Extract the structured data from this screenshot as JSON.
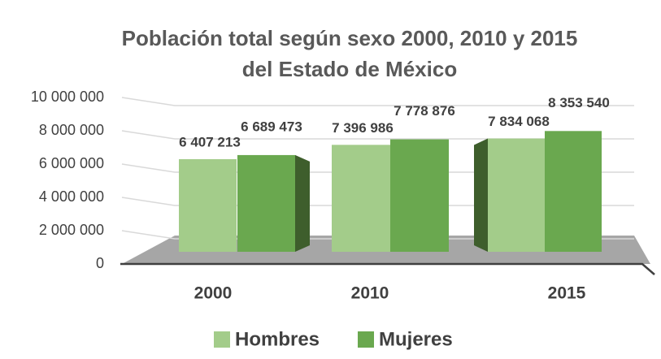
{
  "chart_data": {
    "type": "bar3d",
    "title": "Población total según sexo 2000, 2010 y 2015 del Estado de México",
    "categories": [
      "2000",
      "2010",
      "2015"
    ],
    "series": [
      {
        "name": "Hombres",
        "color": "#a3cc8a",
        "values": [
          6407213,
          7396986,
          7834068
        ],
        "value_labels": [
          "6 407 213",
          "7 396 986",
          "7 834 068"
        ]
      },
      {
        "name": "Mujeres",
        "color": "#6aa84f",
        "values": [
          6689473,
          7778876,
          8353540
        ],
        "value_labels": [
          "6 689 473",
          "7 778 876",
          "8 353 540"
        ]
      }
    ],
    "ylim": [
      0,
      10000000
    ],
    "yticks": [
      0,
      {
        "value": 2000000,
        "label": "2 000 000"
      },
      {
        "value": 4000000,
        "label": "4 000 000"
      },
      {
        "value": 6000000,
        "label": "6 000 000"
      },
      {
        "value": 8000000,
        "label": "8 000 000"
      },
      {
        "value": 10000000,
        "label": "10 000 000"
      }
    ],
    "grid": true,
    "legend": "bottom"
  }
}
